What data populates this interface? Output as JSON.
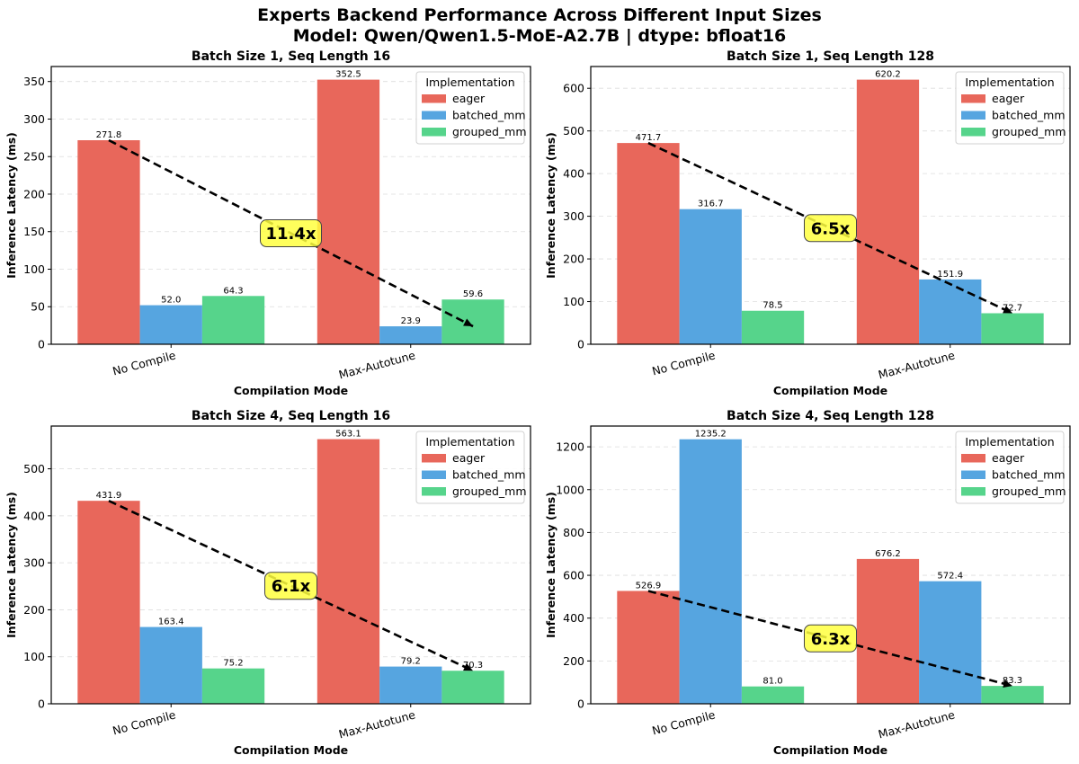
{
  "figure": {
    "title_line1": "Experts Backend Performance Across Different Input Sizes",
    "title_line2": "Model: Qwen/Qwen1.5-MoE-A2.7B | dtype: bfloat16"
  },
  "colors": {
    "eager": "#e8675b",
    "batched_mm": "#56a5e0",
    "grouped_mm": "#56d48b",
    "annotation_fill": "#ffff40"
  },
  "chart_data": [
    {
      "type": "bar",
      "title": "Batch Size 1, Seq Length 16",
      "xlabel": "Compilation Mode",
      "ylabel": "Inference Latency (ms)",
      "categories": [
        "No Compile",
        "Max-Autotune"
      ],
      "ylim": [
        0,
        370
      ],
      "yticks": [
        0,
        50,
        100,
        150,
        200,
        250,
        300,
        350
      ],
      "legend_title": "Implementation",
      "series": [
        {
          "name": "eager",
          "values": [
            271.8,
            352.5
          ]
        },
        {
          "name": "batched_mm",
          "values": [
            52.0,
            23.9
          ]
        },
        {
          "name": "grouped_mm",
          "values": [
            64.3,
            59.6
          ]
        }
      ],
      "value_labels": [
        [
          "271.8",
          "352.5"
        ],
        [
          "52.0",
          "23.9"
        ],
        [
          "64.3",
          "59.6"
        ]
      ],
      "arrow": {
        "from_value": 271.8,
        "to_value": 23.9
      },
      "speedup_label": "11.4x"
    },
    {
      "type": "bar",
      "title": "Batch Size 1, Seq Length 128",
      "xlabel": "Compilation Mode",
      "ylabel": "Inference Latency (ms)",
      "categories": [
        "No Compile",
        "Max-Autotune"
      ],
      "ylim": [
        0,
        651
      ],
      "yticks": [
        0,
        100,
        200,
        300,
        400,
        500,
        600
      ],
      "legend_title": "Implementation",
      "series": [
        {
          "name": "eager",
          "values": [
            471.7,
            620.2
          ]
        },
        {
          "name": "batched_mm",
          "values": [
            316.7,
            151.9
          ]
        },
        {
          "name": "grouped_mm",
          "values": [
            78.5,
            72.7
          ]
        }
      ],
      "value_labels": [
        [
          "471.7",
          "620.2"
        ],
        [
          "316.7",
          "151.9"
        ],
        [
          "78.5",
          "72.7"
        ]
      ],
      "arrow": {
        "from_value": 471.7,
        "to_value": 72.7
      },
      "speedup_label": "6.5x"
    },
    {
      "type": "bar",
      "title": "Batch Size 4, Seq Length 16",
      "xlabel": "Compilation Mode",
      "ylabel": "Inference Latency (ms)",
      "categories": [
        "No Compile",
        "Max-Autotune"
      ],
      "ylim": [
        0,
        591
      ],
      "yticks": [
        0,
        100,
        200,
        300,
        400,
        500
      ],
      "legend_title": "Implementation",
      "series": [
        {
          "name": "eager",
          "values": [
            431.9,
            563.1
          ]
        },
        {
          "name": "batched_mm",
          "values": [
            163.4,
            79.2
          ]
        },
        {
          "name": "grouped_mm",
          "values": [
            75.2,
            70.3
          ]
        }
      ],
      "value_labels": [
        [
          "431.9",
          "563.1"
        ],
        [
          "163.4",
          "79.2"
        ],
        [
          "75.2",
          "70.3"
        ]
      ],
      "arrow": {
        "from_value": 431.9,
        "to_value": 70.3
      },
      "speedup_label": "6.1x"
    },
    {
      "type": "bar",
      "title": "Batch Size 4, Seq Length 128",
      "xlabel": "Compilation Mode",
      "ylabel": "Inference Latency (ms)",
      "categories": [
        "No Compile",
        "Max-Autotune"
      ],
      "ylim": [
        0,
        1297
      ],
      "yticks": [
        0,
        200,
        400,
        600,
        800,
        1000,
        1200
      ],
      "legend_title": "Implementation",
      "series": [
        {
          "name": "eager",
          "values": [
            526.9,
            676.2
          ]
        },
        {
          "name": "batched_mm",
          "values": [
            1235.2,
            572.4
          ]
        },
        {
          "name": "grouped_mm",
          "values": [
            81.0,
            83.3
          ]
        }
      ],
      "value_labels": [
        [
          "526.9",
          "676.2"
        ],
        [
          "1235.2",
          "572.4"
        ],
        [
          "81.0",
          "83.3"
        ]
      ],
      "arrow": {
        "from_value": 526.9,
        "to_value": 83.3
      },
      "speedup_label": "6.3x"
    }
  ]
}
